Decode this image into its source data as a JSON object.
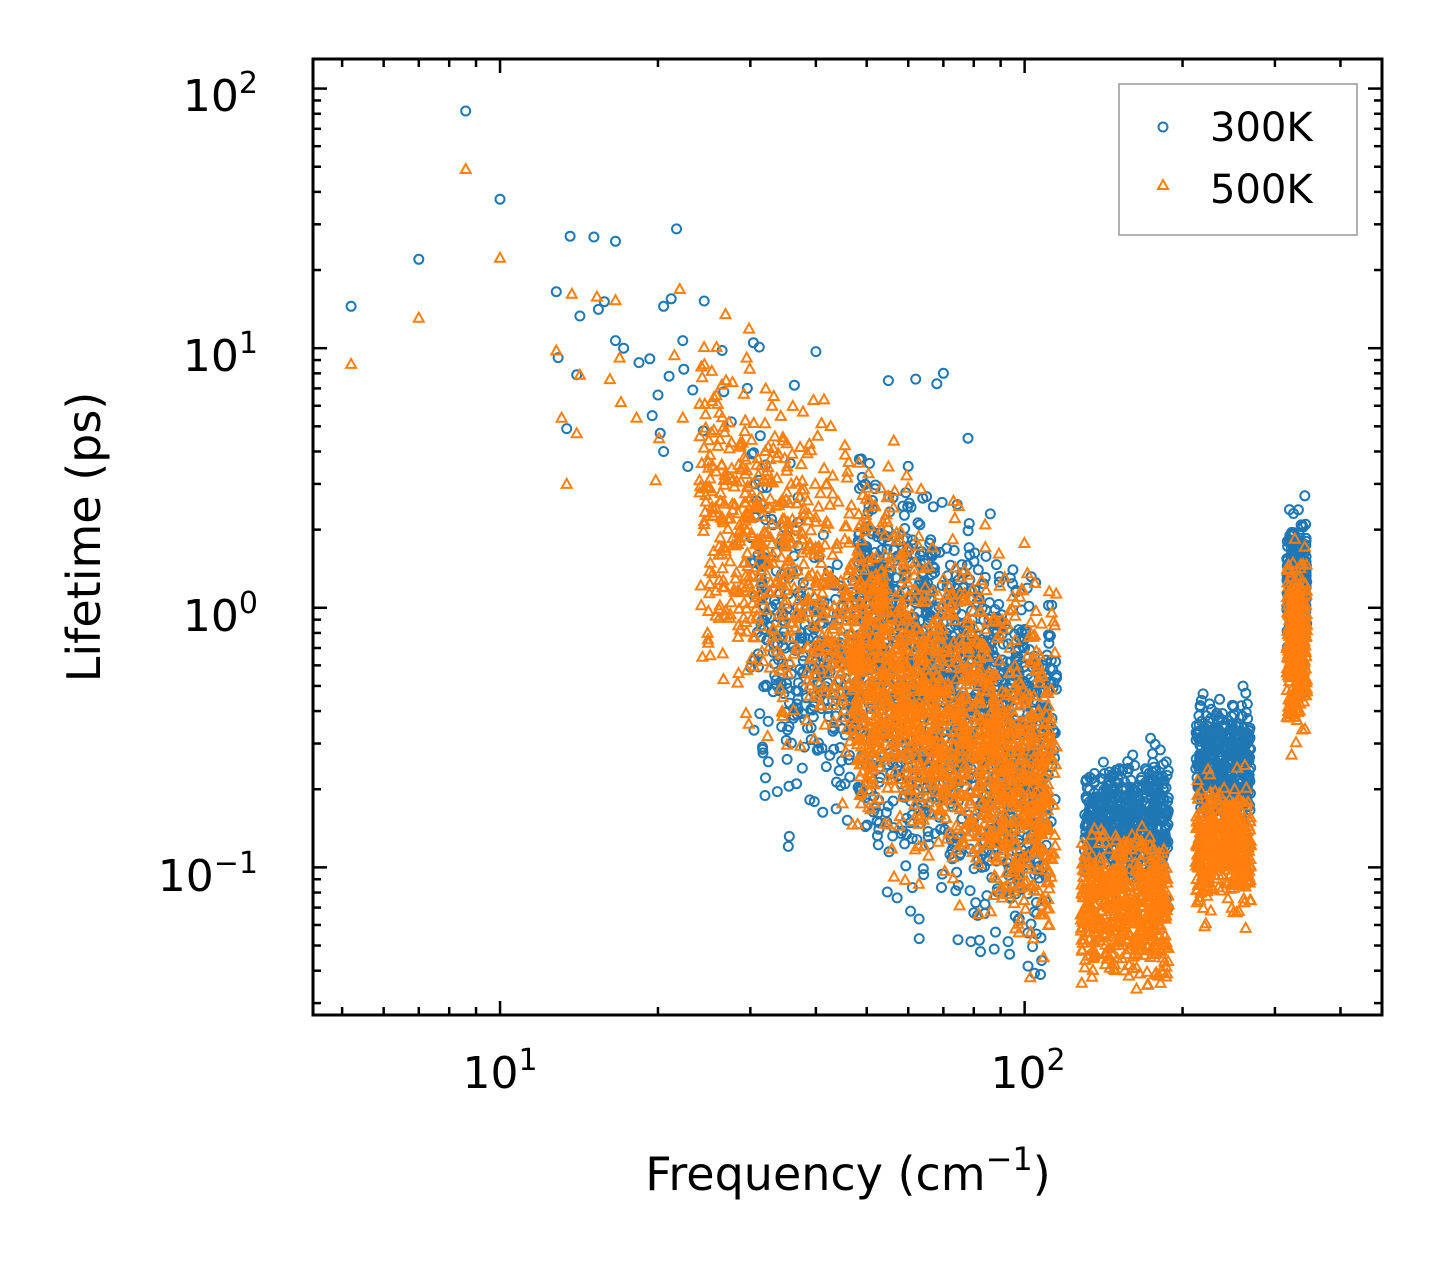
{
  "chart_data": {
    "type": "scatter",
    "xscale": "log",
    "yscale": "log",
    "xlim": [
      4.4,
      480
    ],
    "ylim": [
      0.027,
      130
    ],
    "xlabel": "Frequency (cm",
    "xlabel_superscript": "−1",
    "xlabel_suffix": ")",
    "ylabel": "Lifetime (ps)",
    "x_major_ticks": [
      {
        "value": 10,
        "base": "10",
        "exp": "1"
      },
      {
        "value": 100,
        "base": "10",
        "exp": "2"
      }
    ],
    "y_major_ticks": [
      {
        "value": 0.1,
        "base": "10",
        "exp": "−1"
      },
      {
        "value": 1,
        "base": "10",
        "exp": "0"
      },
      {
        "value": 10,
        "base": "10",
        "exp": "1"
      },
      {
        "value": 100,
        "base": "10",
        "exp": "2"
      }
    ],
    "legend_position": "top-right",
    "series": [
      {
        "name": "300K",
        "marker": "circle",
        "color": "#1f77b4",
        "points": [
          [
            5.2,
            14.5
          ],
          [
            7.0,
            22
          ],
          [
            8.6,
            82
          ],
          [
            10.0,
            37.5
          ],
          [
            12.8,
            16.5
          ],
          [
            13.6,
            27
          ],
          [
            15.1,
            26.8
          ],
          [
            16.6,
            25.8
          ],
          [
            21.7,
            28.8
          ],
          [
            24.5,
            15.2
          ],
          [
            14.2,
            13.3
          ],
          [
            15.4,
            14.1
          ],
          [
            15.8,
            15.1
          ],
          [
            20.5,
            14.5
          ],
          [
            21.2,
            15.5
          ],
          [
            16.6,
            10.7
          ],
          [
            17.2,
            10.0
          ],
          [
            22.3,
            10.7
          ],
          [
            26.5,
            9.8
          ],
          [
            30.4,
            10.5
          ],
          [
            31.2,
            10.1
          ],
          [
            40.0,
            9.7
          ],
          [
            12.9,
            9.2
          ],
          [
            14.0,
            7.9
          ],
          [
            13.4,
            4.9
          ],
          [
            19.3,
            9.1
          ],
          [
            18.4,
            8.8
          ],
          [
            22.4,
            8.3
          ],
          [
            21.0,
            7.8
          ],
          [
            20.0,
            6.6
          ],
          [
            19.5,
            5.5
          ],
          [
            23.3,
            6.9
          ],
          [
            26.7,
            6.8
          ],
          [
            29.6,
            7.0
          ],
          [
            27.6,
            5.2
          ],
          [
            24.4,
            4.8
          ],
          [
            22.8,
            3.5
          ],
          [
            20.2,
            4.7
          ],
          [
            20.5,
            4.0
          ],
          [
            36.4,
            7.2
          ],
          [
            55.0,
            7.5
          ],
          [
            62.0,
            7.6
          ],
          [
            70.0,
            8.0
          ],
          [
            68.0,
            7.3
          ],
          [
            78.0,
            4.5
          ],
          [
            86.0,
            2.3
          ],
          [
            95.0,
            1.4
          ],
          [
            105.0,
            1.25
          ],
          [
            112.0,
            0.78
          ],
          [
            47.0,
            0.48
          ],
          [
            72.0,
            0.45
          ],
          [
            90.0,
            0.6
          ],
          [
            100.0,
            0.7
          ],
          [
            115.0,
            0.55
          ],
          [
            130.0,
            0.116
          ],
          [
            136.0,
            0.103
          ],
          [
            143.0,
            0.14
          ],
          [
            150.0,
            0.21
          ],
          [
            158.0,
            0.24
          ],
          [
            163.0,
            0.195
          ],
          [
            170.0,
            0.24
          ],
          [
            176.0,
            0.17
          ],
          [
            182.0,
            0.098
          ],
          [
            188.0,
            0.07
          ],
          [
            212.0,
            0.24
          ],
          [
            218.0,
            0.18
          ],
          [
            228.0,
            0.28
          ],
          [
            238.0,
            0.31
          ],
          [
            250.0,
            0.42
          ],
          [
            258.0,
            0.3
          ],
          [
            268.0,
            0.22
          ],
          [
            318.0,
            0.78
          ],
          [
            324.0,
            1.9
          ],
          [
            334.0,
            1.55
          ],
          [
            342.0,
            2.7
          ],
          [
            344.0,
            1.85
          ]
        ]
      },
      {
        "name": "500K",
        "marker": "triangle",
        "color": "#ff7f0e",
        "points": [
          [
            5.2,
            8.7
          ],
          [
            7.0,
            13.1
          ],
          [
            8.6,
            49
          ],
          [
            10.0,
            22.3
          ],
          [
            12.8,
            9.8
          ],
          [
            13.1,
            5.4
          ],
          [
            13.4,
            3.0
          ],
          [
            13.7,
            16.2
          ],
          [
            14.0,
            4.7
          ],
          [
            15.3,
            15.8
          ],
          [
            16.6,
            15.3
          ],
          [
            14.2,
            7.9
          ],
          [
            16.9,
            9.2
          ],
          [
            16.2,
            7.6
          ],
          [
            18.2,
            5.4
          ],
          [
            17.0,
            6.2
          ],
          [
            20.1,
            4.5
          ],
          [
            19.8,
            3.1
          ],
          [
            22.0,
            16.9
          ],
          [
            21.5,
            9.4
          ],
          [
            22.3,
            5.4
          ],
          [
            24.2,
            8.5
          ],
          [
            24.0,
            3.1
          ],
          [
            25.5,
            2.4
          ],
          [
            24.5,
            2.1
          ],
          [
            26.0,
            6.1
          ],
          [
            28.0,
            2.5
          ],
          [
            33.0,
            6.0
          ],
          [
            37.8,
            5.7
          ],
          [
            35.2,
            4.3
          ],
          [
            38.0,
            2.4
          ],
          [
            42.0,
            3.0
          ],
          [
            45.0,
            0.45
          ],
          [
            47.0,
            0.34
          ],
          [
            50.0,
            0.22
          ],
          [
            51.0,
            0.21
          ],
          [
            55.0,
            3.5
          ],
          [
            60.0,
            2.9
          ],
          [
            65.0,
            0.3
          ],
          [
            70.0,
            0.25
          ],
          [
            78.0,
            0.32
          ],
          [
            88.0,
            0.13
          ],
          [
            96.0,
            0.18
          ],
          [
            104.0,
            0.22
          ],
          [
            112.0,
            0.36
          ],
          [
            128.0,
            0.066
          ],
          [
            136.0,
            0.058
          ],
          [
            143.0,
            0.075
          ],
          [
            150.0,
            0.095
          ],
          [
            158.0,
            0.11
          ],
          [
            165.0,
            0.095
          ],
          [
            171.0,
            0.112
          ],
          [
            178.0,
            0.07
          ],
          [
            186.0,
            0.038
          ],
          [
            212.0,
            0.105
          ],
          [
            220.0,
            0.09
          ],
          [
            230.0,
            0.12
          ],
          [
            240.0,
            0.165
          ],
          [
            250.0,
            0.125
          ],
          [
            256.0,
            0.068
          ],
          [
            266.0,
            0.095
          ],
          [
            316.0,
            0.38
          ],
          [
            324.0,
            0.62
          ],
          [
            330.0,
            1.2
          ],
          [
            342.0,
            1.72
          ],
          [
            345.0,
            0.82
          ]
        ]
      }
    ],
    "clusters": [
      {
        "series": 0,
        "x": [
          30,
          110
        ],
        "cy": "0.42*x",
        "spread": 0.55,
        "n": 900
      },
      {
        "series": 0,
        "x": [
          48,
          115
        ],
        "cy": "1.3*x",
        "spread": 0.42,
        "n": 800
      },
      {
        "series": 0,
        "x": [
          130,
          188
        ],
        "cy": "0.15*x",
        "spread": 0.22,
        "n": 550
      },
      {
        "series": 0,
        "x": [
          212,
          270
        ],
        "cy": "0.26*x",
        "spread": 0.2,
        "n": 420
      },
      {
        "series": 0,
        "x": [
          316,
          345
        ],
        "cy": "1.2*x",
        "spread": 0.25,
        "n": 320
      },
      {
        "series": 1,
        "x": [
          24,
          115
        ],
        "cy": "0.85*x",
        "spread": 0.6,
        "n": 1300
      },
      {
        "series": 1,
        "x": [
          46,
          112
        ],
        "cy": "0.52*x",
        "spread": 0.45,
        "n": 900
      },
      {
        "series": 1,
        "x": [
          128,
          188
        ],
        "cy": "0.072*x",
        "spread": 0.25,
        "n": 550
      },
      {
        "series": 1,
        "x": [
          212,
          270
        ],
        "cy": "0.12*x",
        "spread": 0.22,
        "n": 420
      },
      {
        "series": 1,
        "x": [
          316,
          345
        ],
        "cy": "0.75*x",
        "spread": 0.3,
        "n": 320
      }
    ]
  }
}
